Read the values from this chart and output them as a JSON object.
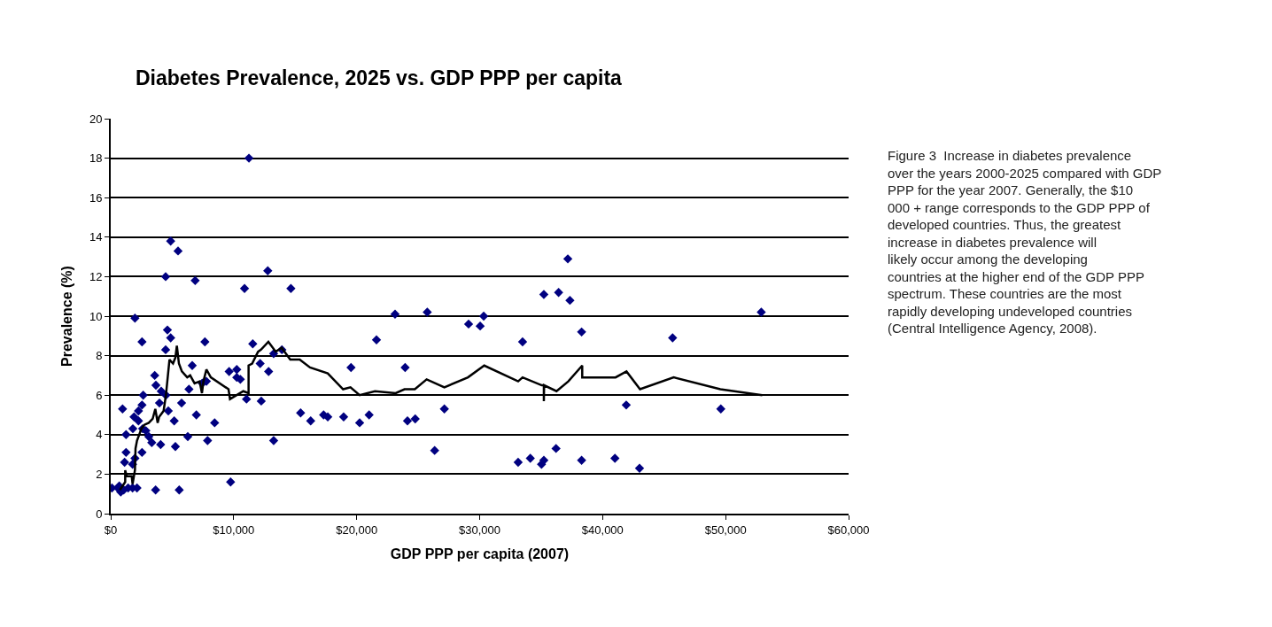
{
  "chart_data": {
    "type": "scatter",
    "title": "Diabetes Prevalence, 2025 vs. GDP PPP per capita",
    "xlabel": "GDP PPP per capita (2007)",
    "ylabel": "Prevalence (%)",
    "xlim": [
      0,
      60000
    ],
    "xticks": [
      {
        "value": 0,
        "label": "$0"
      },
      {
        "value": 10000,
        "label": "$10,000"
      },
      {
        "value": 20000,
        "label": "$20,000"
      },
      {
        "value": 30000,
        "label": "$30,000"
      },
      {
        "value": 40000,
        "label": "$40,000"
      },
      {
        "value": 50000,
        "label": "$50,000"
      },
      {
        "value": 60000,
        "label": "$60,000"
      }
    ],
    "ylim": [
      0,
      20
    ],
    "yticks": [
      0,
      2,
      4,
      6,
      8,
      10,
      12,
      14,
      16,
      18,
      20
    ],
    "grid": "y",
    "series": [
      {
        "marker": "diamond",
        "color": "#000080",
        "x": [
          11240,
          4874,
          5474,
          37170,
          12770,
          4466,
          6867,
          10880,
          14650,
          35220,
          36420,
          37340,
          1969,
          23120,
          25740,
          30330,
          29100,
          30040,
          52900,
          38290,
          4610,
          4874,
          2545,
          7659,
          11550,
          4466,
          21610,
          33490,
          45690,
          3578,
          6627,
          12150,
          12840,
          9628,
          10250,
          10250,
          10540,
          7443,
          7779,
          3674,
          4106,
          4490,
          6363,
          2641,
          11040,
          12240,
          3962,
          5762,
          2545,
          961,
          2257,
          27130,
          49610,
          41920,
          15440,
          16260,
          17310,
          17650,
          18940,
          20240,
          21010,
          19540,
          23940,
          24130,
          24760,
          26340,
          13250,
          13250,
          13920,
          1897,
          2257,
          1800,
          2593,
          1247,
          2857,
          3097,
          3337,
          4058,
          5162,
          4682,
          6963,
          8450,
          6267,
          7875,
          5258,
          2545,
          1247,
          1969,
          1129,
          1776,
          9748,
          3650,
          5570,
          96,
          576,
          816,
          1056,
          1416,
          1776,
          2136,
          696,
          33130,
          34120,
          35030,
          35220,
          36210,
          38290,
          41000,
          43000
        ],
        "values": [
          18.0,
          13.8,
          13.3,
          12.9,
          12.3,
          12.0,
          11.8,
          11.4,
          11.4,
          11.1,
          11.2,
          10.8,
          9.9,
          10.1,
          10.2,
          10.0,
          9.6,
          9.5,
          10.2,
          9.2,
          9.3,
          8.9,
          8.7,
          8.7,
          8.6,
          8.3,
          8.8,
          8.7,
          8.9,
          7.0,
          7.5,
          7.6,
          7.2,
          7.2,
          7.3,
          6.9,
          6.8,
          6.6,
          6.7,
          6.5,
          6.2,
          6.0,
          6.3,
          6.0,
          5.8,
          5.7,
          5.6,
          5.6,
          5.5,
          5.3,
          5.2,
          5.3,
          5.3,
          5.5,
          5.1,
          4.7,
          5.0,
          4.9,
          4.9,
          4.6,
          5.0,
          7.4,
          7.4,
          4.7,
          4.8,
          3.2,
          3.7,
          8.1,
          8.3,
          4.9,
          4.7,
          4.3,
          4.3,
          4.0,
          4.2,
          3.9,
          3.6,
          3.5,
          4.7,
          5.2,
          5.0,
          4.6,
          3.9,
          3.7,
          3.4,
          3.1,
          3.1,
          2.8,
          2.6,
          2.5,
          1.6,
          1.2,
          1.2,
          1.3,
          1.3,
          1.1,
          1.2,
          1.3,
          1.3,
          1.3,
          1.4,
          2.6,
          2.8,
          2.5,
          2.7,
          3.3,
          2.7,
          2.8,
          2.3
        ]
      },
      {
        "type": "line",
        "marker": "none",
        "line_style": "solid",
        "color": "#000000",
        "x": [
          744,
          1177,
          1177,
          1297,
          1705,
          1777,
          1969,
          2017,
          2137,
          2497,
          2737,
          3097,
          3409,
          3625,
          3817,
          3938,
          4298,
          4490,
          4778,
          5066,
          5258,
          5378,
          5546,
          5786,
          6219,
          6459,
          6819,
          7227,
          7419,
          7539,
          7779,
          8139,
          9580,
          9700,
          10780,
          11210,
          11210,
          11500,
          11980,
          12220,
          12820,
          13420,
          13900,
          14597,
          15366,
          16206,
          17647,
          18895,
          19495,
          20240,
          21488,
          23168,
          23889,
          24729,
          25690,
          27130,
          29051,
          30372,
          33130,
          33490,
          35050,
          35220,
          35220,
          35240,
          36250,
          37210,
          38340,
          38340,
          41050,
          41940,
          43040,
          45780,
          49570,
          52980
        ],
        "values": [
          1.2,
          1.6,
          2.2,
          1.9,
          1.9,
          1.5,
          2.2,
          3.3,
          3.7,
          4.3,
          4.5,
          4.6,
          4.8,
          5.3,
          4.6,
          4.9,
          5.2,
          6.0,
          7.8,
          7.6,
          7.9,
          8.5,
          7.6,
          7.2,
          6.9,
          7.0,
          6.6,
          6.7,
          6.1,
          6.7,
          7.3,
          6.9,
          6.3,
          5.8,
          6.2,
          6.1,
          7.5,
          7.6,
          8.2,
          8.3,
          8.7,
          8.2,
          8.4,
          7.8,
          7.8,
          7.4,
          7.1,
          6.3,
          6.4,
          6.0,
          6.2,
          6.1,
          6.3,
          6.3,
          6.8,
          6.4,
          6.9,
          7.5,
          6.7,
          6.9,
          6.5,
          6.5,
          5.7,
          6.5,
          6.2,
          6.7,
          7.5,
          6.9,
          6.9,
          7.2,
          6.3,
          6.9,
          6.3,
          6.0
        ]
      }
    ],
    "annotations": [
      "Figure 3  Increase in diabetes prevalence over the years 2000-2025 compared with GDP PPP for the year 2007. Generally, the $10 000 + range corresponds to the GDP PPP of developed countries. Thus, the greatest increase in diabetes prevalence will likely occur among the developing countries at the higher end of the GDP PPP spectrum. These countries are the most rapidly developing undeveloped countries (Central Intelligence Agency, 2008)."
    ]
  }
}
